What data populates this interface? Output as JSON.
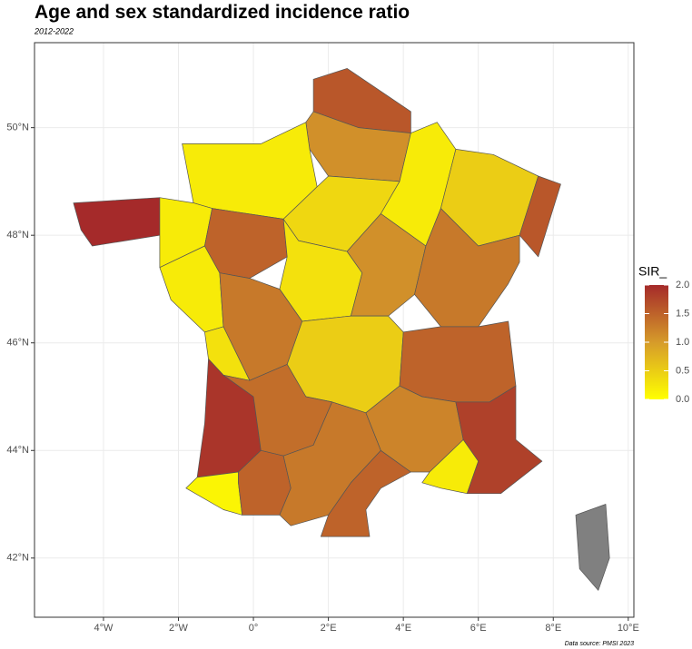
{
  "chart_data": {
    "type": "choropleth",
    "title": "Age and sex standardized incidence ratio",
    "subtitle": "2012-2022",
    "caption": "Data source: PMSI 2023",
    "legend_title": "SIR_",
    "values": [
      1.6,
      1.1,
      0.2,
      2.0,
      0.2,
      0.2,
      1.5,
      0.4,
      0.2,
      0.5,
      1.6,
      0.3,
      1.1,
      1.3,
      1.3,
      0.3,
      0.5,
      1.5,
      1.9,
      1.4,
      0.1,
      1.5,
      1.3,
      1.5,
      1.2,
      0.2,
      1.8,
      null
    ],
    "colors": [
      "#ffff00",
      "#d69b2a",
      "#a52a2a"
    ],
    "na_color": "#808080",
    "color_lim": [
      0,
      2
    ],
    "color_ticks": [
      {
        "value": 0,
        "label": "0.0"
      },
      {
        "value": 0.5,
        "label": "0.5"
      },
      {
        "value": 1,
        "label": "1.0"
      },
      {
        "value": 1.5,
        "label": "1.5"
      },
      {
        "value": 2,
        "label": "2.0"
      }
    ],
    "xlim": [
      -5.84,
      10.15
    ],
    "ylim": [
      40.9,
      51.58
    ],
    "xticks": [
      {
        "value": -4,
        "label": "4°W"
      },
      {
        "value": -2,
        "label": "2°W"
      },
      {
        "value": 0,
        "label": "0°"
      },
      {
        "value": 2,
        "label": "2°E"
      },
      {
        "value": 4,
        "label": "4°E"
      },
      {
        "value": 6,
        "label": "6°E"
      },
      {
        "value": 8,
        "label": "8°E"
      },
      {
        "value": 10,
        "label": "10°E"
      }
    ],
    "yticks": [
      {
        "value": 42,
        "label": "42°N"
      },
      {
        "value": 44,
        "label": "44°N"
      },
      {
        "value": 46,
        "label": "46°N"
      },
      {
        "value": 48,
        "label": "48°N"
      },
      {
        "value": 50,
        "label": "50°N"
      }
    ],
    "grid": true
  }
}
